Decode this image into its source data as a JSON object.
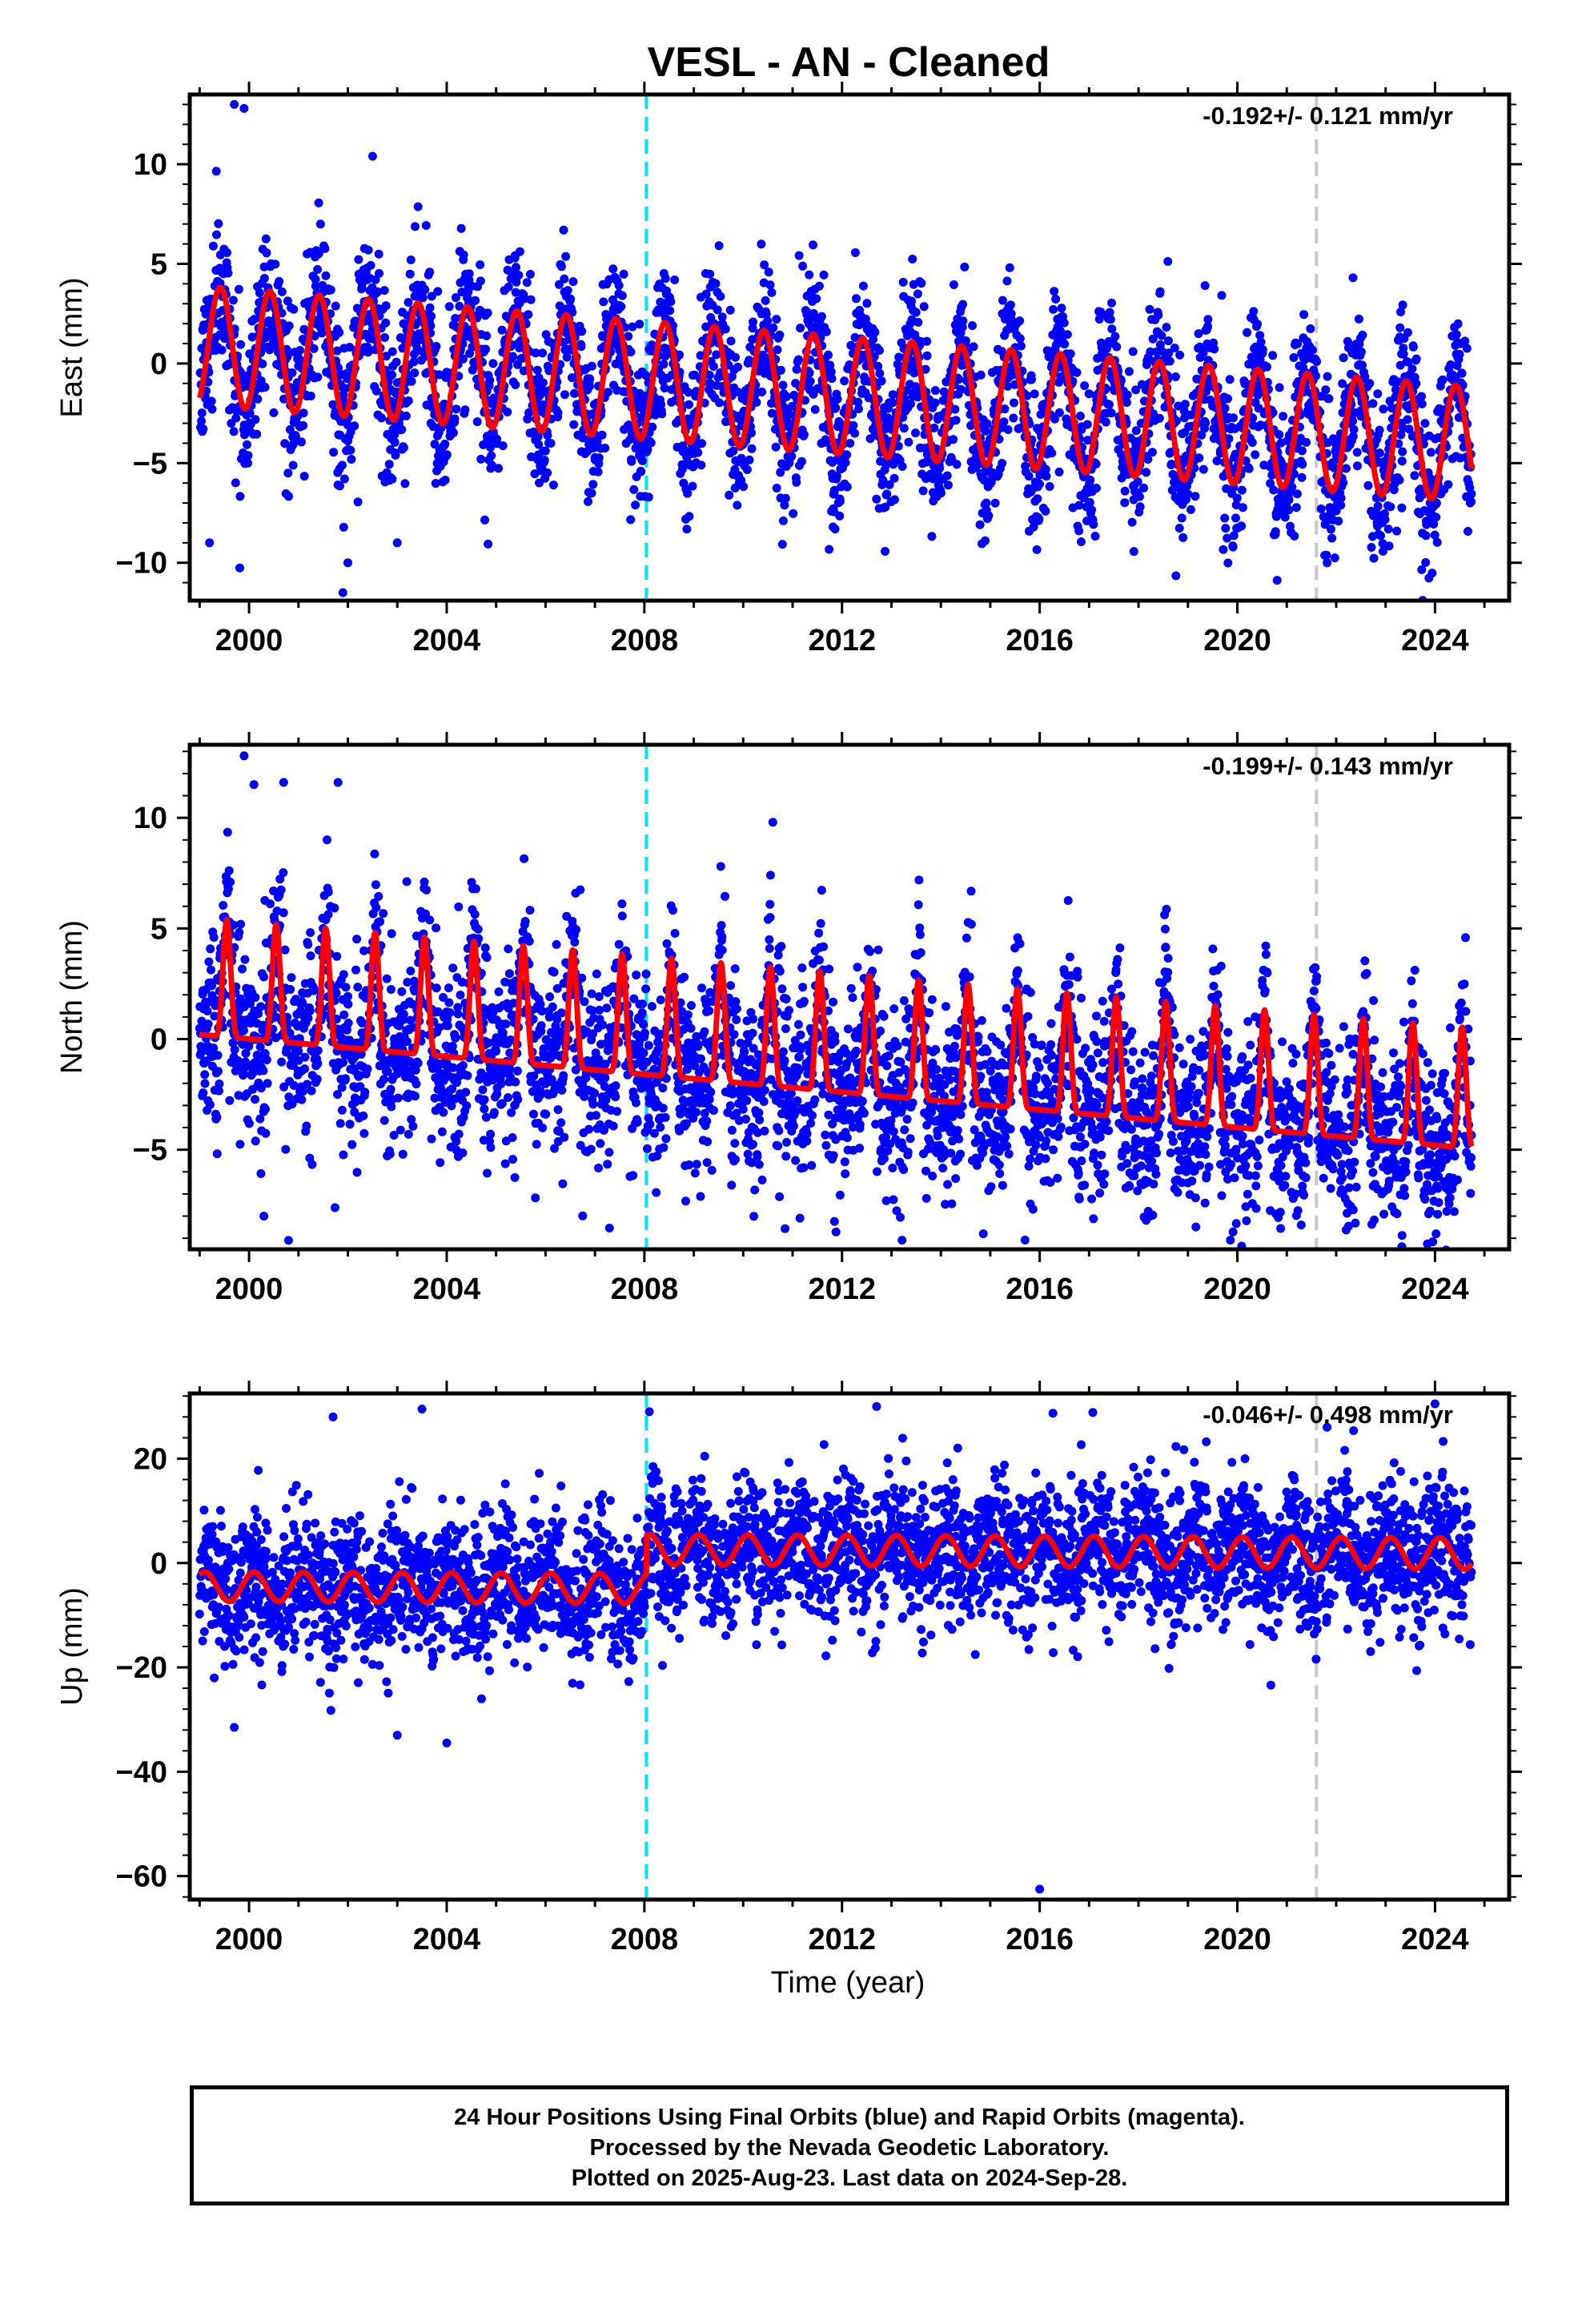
{
  "chart_data": {
    "type": "scatter",
    "title": "VESL  - AN - Cleaned",
    "xlabel": "Time (year)",
    "xlim": [
      1998.8,
      2025.5
    ],
    "xticks": [
      2000,
      2004,
      2008,
      2012,
      2016,
      2020,
      2024
    ],
    "colors": {
      "points": "#0000ff",
      "model": "#ff0000",
      "break_cyan": "#00e5ff",
      "break_gray": "#c8c8c8"
    },
    "breaks": [
      {
        "year": 2008.04,
        "color": "#00e5ff"
      },
      {
        "year": 2021.6,
        "color": "#c8c8c8"
      }
    ],
    "data_span": [
      1999.0,
      2024.74
    ],
    "panels": [
      {
        "name": "east",
        "ylabel": "East (mm)",
        "ylim": [
          -11.9,
          13.5
        ],
        "yticks": [
          10,
          5,
          0,
          -5,
          -10
        ],
        "rate_label": "-0.192+/- 0.121 mm/yr",
        "model": {
          "offset_start": 0.9,
          "slope": -0.192,
          "amp_start": 3.0,
          "amp_end": 2.9,
          "peak_phase": 0.42,
          "noise": 1.7,
          "step_at_break": 0.0
        }
      },
      {
        "name": "north",
        "ylabel": "North (mm)",
        "ylim": [
          -9.5,
          13.3
        ],
        "yticks": [
          10,
          5,
          0,
          -5
        ],
        "rate_label": "-0.199+/- 0.143 mm/yr",
        "model": {
          "offset_start": 1.2,
          "slope": -0.199,
          "amp_start": 3.3,
          "amp_end": 3.4,
          "peak_phase": 0.55,
          "noise": 1.8,
          "step_at_break": 0.0,
          "peaked": true
        }
      },
      {
        "name": "up",
        "ylabel": "Up (mm)",
        "ylim": [
          -64.5,
          32.5
        ],
        "yticks": [
          20,
          0,
          -20,
          -40,
          -60
        ],
        "rate_label": "-0.046+/- 0.498 mm/yr",
        "model": {
          "offset_start": -4.5,
          "slope": -0.046,
          "amp_start": 2.8,
          "amp_end": 3.0,
          "peak_phase": 0.1,
          "noise": 6.0,
          "step_at_break": 7.5
        }
      }
    ],
    "outliers": {
      "east": [
        [
          1999.7,
          13.0
        ],
        [
          1999.9,
          12.8
        ],
        [
          2002.5,
          10.4
        ],
        [
          2002.0,
          -10.0
        ],
        [
          2001.9,
          -11.5
        ],
        [
          2003.0,
          -9.0
        ],
        [
          1999.2,
          -9.0
        ]
      ],
      "north": [
        [
          1999.9,
          12.8
        ],
        [
          2000.1,
          11.5
        ],
        [
          2000.7,
          11.6
        ],
        [
          2001.8,
          11.6
        ],
        [
          2010.6,
          9.8
        ],
        [
          2000.3,
          -8.0
        ],
        [
          2000.8,
          -9.1
        ],
        [
          2019.0,
          -6.5
        ]
      ],
      "up": [
        [
          2016.0,
          -62.5
        ],
        [
          2024.0,
          30.5
        ],
        [
          2001.7,
          28.0
        ],
        [
          2003.5,
          29.5
        ],
        [
          2012.7,
          30.0
        ],
        [
          2008.1,
          29.0
        ],
        [
          1999.7,
          -31.5
        ],
        [
          2004.0,
          -34.5
        ],
        [
          2003.0,
          -33.0
        ]
      ]
    }
  },
  "footer": {
    "line1": "24 Hour Positions Using Final Orbits (blue) and Rapid Orbits (magenta).",
    "line2": "Processed by the Nevada Geodetic Laboratory.",
    "line3": "Plotted on 2025-Aug-23. Last data on 2024-Sep-28."
  }
}
